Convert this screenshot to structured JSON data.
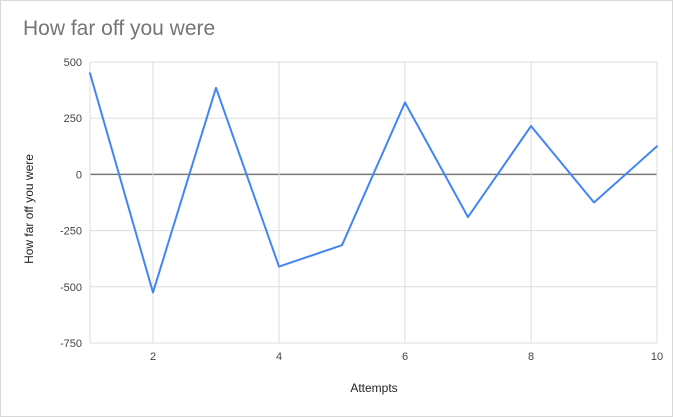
{
  "chart_data": {
    "type": "line",
    "title": "How far off you were",
    "xlabel": "Attempts",
    "ylabel": "How far off you were",
    "x": [
      1,
      2,
      3,
      4,
      5,
      6,
      7,
      8,
      9,
      10
    ],
    "series": [
      {
        "values": [
          450,
          -525,
          385,
          -410,
          -315,
          320,
          -190,
          215,
          -125,
          125
        ]
      }
    ],
    "xlim": [
      1,
      10
    ],
    "ylim": [
      -750,
      500
    ],
    "xticks": [
      2,
      4,
      6,
      8,
      10
    ],
    "yticks": [
      500,
      250,
      0,
      -250,
      -500,
      -750
    ],
    "grid": true,
    "line_color": "#4285f4",
    "zero_line_color": "#777777"
  }
}
